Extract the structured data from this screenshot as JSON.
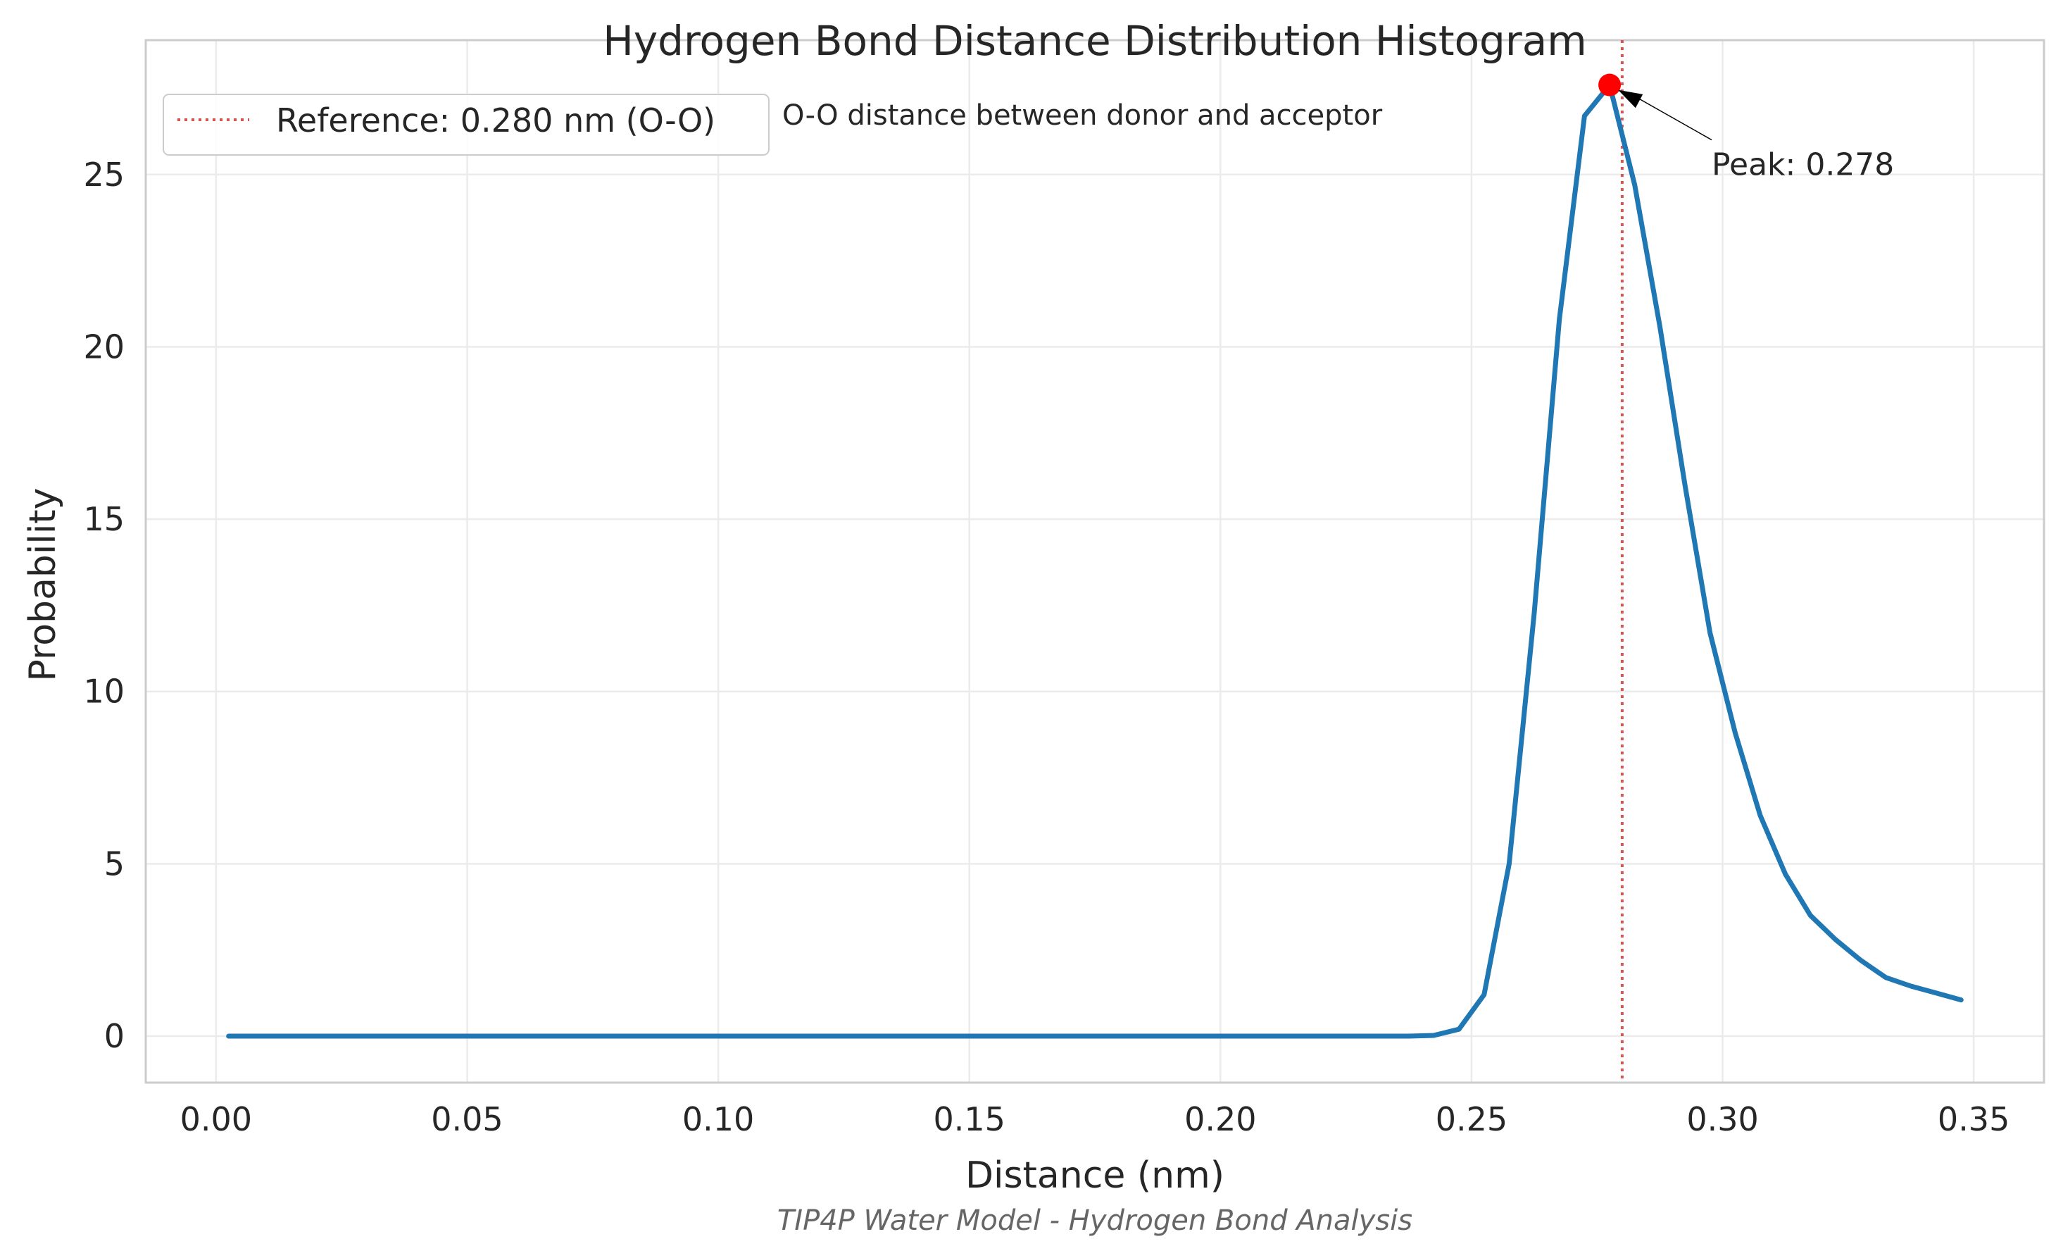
{
  "chart_data": {
    "type": "line",
    "title": "Hydrogen Bond Distance Distribution Histogram",
    "xlabel": "Distance (nm)",
    "ylabel": "Probability",
    "caption": "TIP4P Water Model - Hydrogen Bond Analysis",
    "xlim": [
      -0.014,
      0.364
    ],
    "ylim": [
      -1.35,
      28.9
    ],
    "xticks": [
      0.0,
      0.05,
      0.1,
      0.15,
      0.2,
      0.25,
      0.3,
      0.35
    ],
    "xtick_labels": [
      "0.00",
      "0.05",
      "0.10",
      "0.15",
      "0.20",
      "0.25",
      "0.30",
      "0.35"
    ],
    "yticks": [
      0,
      5,
      10,
      15,
      20,
      25
    ],
    "ytick_labels": [
      "0",
      "5",
      "10",
      "15",
      "20",
      "25"
    ],
    "grid": true,
    "legend_position": "top-left",
    "series": [
      {
        "color": "#1f77b4",
        "x": [
          0.0025,
          0.0075,
          0.0125,
          0.0175,
          0.0225,
          0.0275,
          0.0325,
          0.0375,
          0.0425,
          0.0475,
          0.0525,
          0.0575,
          0.0625,
          0.0675,
          0.0725,
          0.0775,
          0.0825,
          0.0875,
          0.0925,
          0.0975,
          0.1025,
          0.1075,
          0.1125,
          0.1175,
          0.1225,
          0.1275,
          0.1325,
          0.1375,
          0.1425,
          0.1475,
          0.1525,
          0.1575,
          0.1625,
          0.1675,
          0.1725,
          0.1775,
          0.1825,
          0.1875,
          0.1925,
          0.1975,
          0.2025,
          0.2075,
          0.2125,
          0.2175,
          0.2225,
          0.2275,
          0.2325,
          0.2375,
          0.2425,
          0.2475,
          0.2525,
          0.2575,
          0.2625,
          0.2675,
          0.2725,
          0.2775,
          0.2825,
          0.2875,
          0.2925,
          0.2975,
          0.3025,
          0.3075,
          0.3125,
          0.3175,
          0.3225,
          0.3275,
          0.3325,
          0.3375,
          0.3425,
          0.3475
        ],
        "y": [
          0,
          0,
          0,
          0,
          0,
          0,
          0,
          0,
          0,
          0,
          0,
          0,
          0,
          0,
          0,
          0,
          0,
          0,
          0,
          0,
          0,
          0,
          0,
          0,
          0,
          0,
          0,
          0,
          0,
          0,
          0,
          0,
          0,
          0,
          0,
          0,
          0,
          0,
          0,
          0,
          0,
          0,
          0,
          0,
          0,
          0,
          0,
          0,
          0.02,
          0.2,
          1.2,
          5.0,
          12.3,
          20.8,
          26.7,
          27.6,
          24.7,
          20.6,
          16.0,
          11.7,
          8.8,
          6.4,
          4.7,
          3.5,
          2.8,
          2.2,
          1.7,
          1.45,
          1.25,
          1.05
        ]
      }
    ],
    "reference_line": {
      "x": 0.28,
      "color": "#d9534f",
      "label": "Reference: 0.280 nm (O-O)"
    },
    "peak": {
      "x": 0.2775,
      "y": 27.6,
      "color": "#ff0000",
      "label": "Peak: 0.278"
    },
    "annotation": "O-O distance between donor and acceptor"
  }
}
